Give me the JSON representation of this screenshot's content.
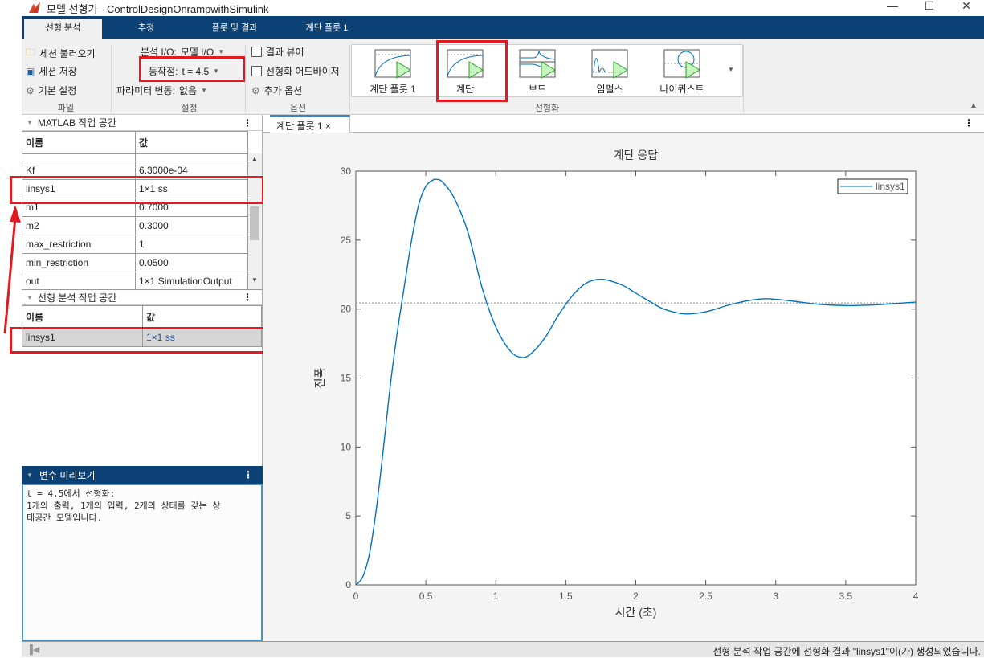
{
  "window": {
    "title": "모델 선형기 - ControlDesignOnrampwithSimulink",
    "min": "—",
    "max": "☐",
    "close": "✕"
  },
  "tabs": [
    {
      "label": "선형 분석"
    },
    {
      "label": "추정"
    },
    {
      "label": "플롯 및 결과"
    },
    {
      "label": "계단 플롯 1"
    }
  ],
  "toolbar": {
    "file": {
      "load": "세션 불러오기",
      "save": "세션 저장",
      "prefs": "기본 설정",
      "section": "파일"
    },
    "setup": {
      "io_label": "분석 I/O:",
      "io_value": "모델 I/O",
      "op_label": "동작점:",
      "op_value": "t = 4.5",
      "param_label": "파라미터 변동:",
      "param_value": "없음",
      "section": "설정"
    },
    "options": {
      "result_viewer": "결과 뷰어",
      "advisor": "선형화 어드바이저",
      "more": "추가 옵션",
      "section": "옵션"
    },
    "linearize": {
      "items": [
        {
          "label": "계단 플롯 1"
        },
        {
          "label": "계단"
        },
        {
          "label": "보드"
        },
        {
          "label": "임펄스"
        },
        {
          "label": "나이퀴스트"
        }
      ],
      "section": "선형화"
    }
  },
  "matlab_ws": {
    "title": "MATLAB 작업 공간",
    "col_name": "이름",
    "col_value": "값",
    "rows": [
      {
        "name": "Kf",
        "value": "6.3000e-04"
      },
      {
        "name": "linsys1",
        "value": "1×1 ss"
      },
      {
        "name": "m1",
        "value": "0.7000"
      },
      {
        "name": "m2",
        "value": "0.3000"
      },
      {
        "name": "max_restriction",
        "value": "1"
      },
      {
        "name": "min_restriction",
        "value": "0.0500"
      },
      {
        "name": "out",
        "value": "1×1 SimulationOutput"
      }
    ]
  },
  "lin_ws": {
    "title": "선형 분석 작업 공간",
    "col_name": "이름",
    "col_value": "값",
    "rows": [
      {
        "name": "linsys1",
        "value": "1×1 ss"
      }
    ]
  },
  "preview": {
    "title": "변수 미리보기",
    "line1": "t = 4.5에서 선형화:",
    "line2": "1개의 출력, 1개의 입력, 2개의 상태를 갖는 상",
    "line3": "태공간 모델입니다."
  },
  "plot_tab": {
    "label": "계단 플롯 1",
    "close": "×"
  },
  "chart_data": {
    "type": "line",
    "title": "계단 응답",
    "xlabel": "시간 (초)",
    "ylabel": "진폭",
    "xlim": [
      0,
      4
    ],
    "ylim": [
      0,
      30
    ],
    "xticks": [
      "0",
      "0.5",
      "1",
      "1.5",
      "2",
      "2.5",
      "3",
      "3.5",
      "4"
    ],
    "yticks": [
      "0",
      "5",
      "10",
      "15",
      "20",
      "25",
      "30"
    ],
    "legend": "top-right",
    "steady_state": 20.44,
    "grid": false,
    "color": "#0072bd",
    "series": [
      {
        "name": "linsys1",
        "x": [
          0,
          0.05,
          0.1,
          0.15,
          0.2,
          0.25,
          0.3,
          0.35,
          0.4,
          0.45,
          0.5,
          0.55,
          0.58,
          0.62,
          0.7,
          0.8,
          0.9,
          1.0,
          1.1,
          1.18,
          1.25,
          1.35,
          1.45,
          1.55,
          1.65,
          1.76,
          1.9,
          2.0,
          2.1,
          2.2,
          2.35,
          2.5,
          2.65,
          2.8,
          2.93,
          3.1,
          3.3,
          3.5,
          3.7,
          3.85,
          4.0
        ],
        "y": [
          0,
          0.6,
          2.4,
          5.8,
          10.2,
          14.8,
          18.6,
          21.9,
          25.1,
          27.6,
          28.9,
          29.35,
          29.4,
          29.2,
          28.1,
          25.6,
          21.6,
          18.7,
          17.0,
          16.5,
          16.75,
          17.9,
          19.6,
          21.0,
          21.9,
          22.15,
          21.75,
          21.15,
          20.55,
          20.0,
          19.65,
          19.8,
          20.25,
          20.6,
          20.75,
          20.6,
          20.35,
          20.25,
          20.3,
          20.4,
          20.5
        ]
      }
    ]
  },
  "status": "선형 분석 작업 공간에 선형화 결과 \"linsys1\"이(가) 생성되었습니다."
}
